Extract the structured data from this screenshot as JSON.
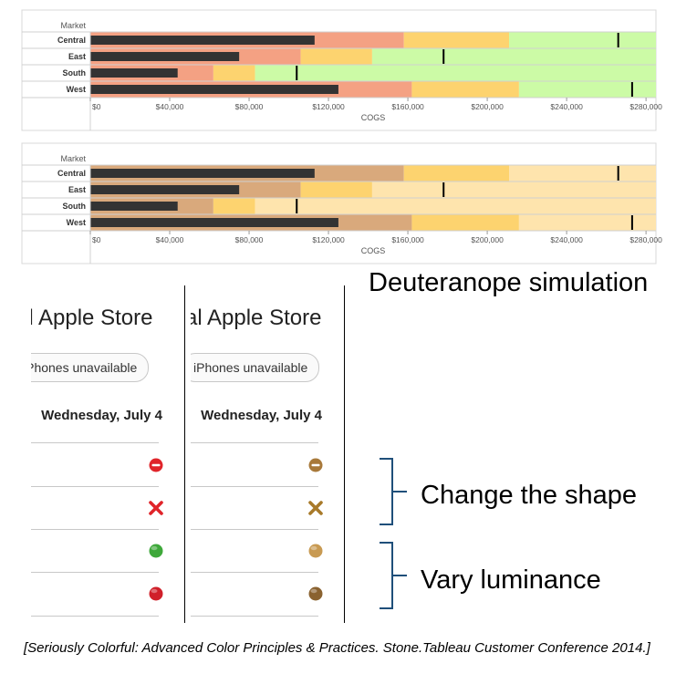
{
  "chart_data": [
    {
      "type": "bullet",
      "row_header": "Market",
      "xlabel": "COGS",
      "xlim": [
        0,
        285000
      ],
      "x_ticks": [
        "$0",
        "$40,000",
        "$80,000",
        "$120,000",
        "$160,000",
        "$200,000",
        "$240,000",
        "$280,000"
      ],
      "x_tick_values": [
        0,
        40000,
        80000,
        120000,
        160000,
        200000,
        240000,
        280000
      ],
      "band_colors": [
        "#f4a183",
        "#fdd36f",
        "#ccfba6"
      ],
      "bar_color": "#333333",
      "rows": [
        {
          "label": "Central",
          "value": 113000,
          "target": 266000,
          "bands": [
            158000,
            211000,
            285000
          ]
        },
        {
          "label": "East",
          "value": 75000,
          "target": 178000,
          "bands": [
            106000,
            142000,
            285000
          ]
        },
        {
          "label": "South",
          "value": 44000,
          "target": 104000,
          "bands": [
            62000,
            83000,
            285000
          ]
        },
        {
          "label": "West",
          "value": 125000,
          "target": 273000,
          "bands": [
            162000,
            216000,
            285000
          ]
        }
      ]
    },
    {
      "type": "bullet",
      "row_header": "Market",
      "xlabel": "COGS",
      "xlim": [
        0,
        285000
      ],
      "x_ticks": [
        "$0",
        "$40,000",
        "$80,000",
        "$120,000",
        "$160,000",
        "$200,000",
        "$240,000",
        "$280,000"
      ],
      "x_tick_values": [
        0,
        40000,
        80000,
        120000,
        160000,
        200000,
        240000,
        280000
      ],
      "band_colors": [
        "#d9a97c",
        "#fdd36f",
        "#fee4ad"
      ],
      "bar_color": "#333333",
      "rows": [
        {
          "label": "Central",
          "value": 113000,
          "target": 266000,
          "bands": [
            158000,
            211000,
            285000
          ]
        },
        {
          "label": "East",
          "value": 75000,
          "target": 178000,
          "bands": [
            106000,
            142000,
            285000
          ]
        },
        {
          "label": "South",
          "value": 44000,
          "target": 104000,
          "bands": [
            62000,
            83000,
            285000
          ]
        },
        {
          "label": "West",
          "value": 125000,
          "target": 273000,
          "bands": [
            162000,
            216000,
            285000
          ]
        }
      ]
    }
  ],
  "simulation_label": "Deuteranope simulation",
  "panels": [
    {
      "store": "al Apple Store",
      "pill": "iPhones unavailable",
      "date": "Wednesday, July 4",
      "icons": [
        {
          "name": "minus-circle-icon",
          "color": "#e0242a"
        },
        {
          "name": "x-mark-icon",
          "color": "#e0242a"
        },
        {
          "name": "dot-icon",
          "color": "#3ea83a"
        },
        {
          "name": "dot-icon",
          "color": "#d0202a"
        }
      ]
    },
    {
      "store": "al Apple Store",
      "pill": "iPhones unavailable",
      "date": "Wednesday, July 4",
      "icons": [
        {
          "name": "minus-circle-icon",
          "color": "#a8793a"
        },
        {
          "name": "x-mark-icon",
          "color": "#a87a2a"
        },
        {
          "name": "dot-icon",
          "color": "#c89a52"
        },
        {
          "name": "dot-icon",
          "color": "#8a6230"
        }
      ]
    }
  ],
  "annotations": {
    "shape": "Change the shape",
    "luminance": "Vary luminance"
  },
  "caption": "[Seriously Colorful: Advanced Color Principles & Practices. Stone.Tableau Customer Conference 2014.]"
}
